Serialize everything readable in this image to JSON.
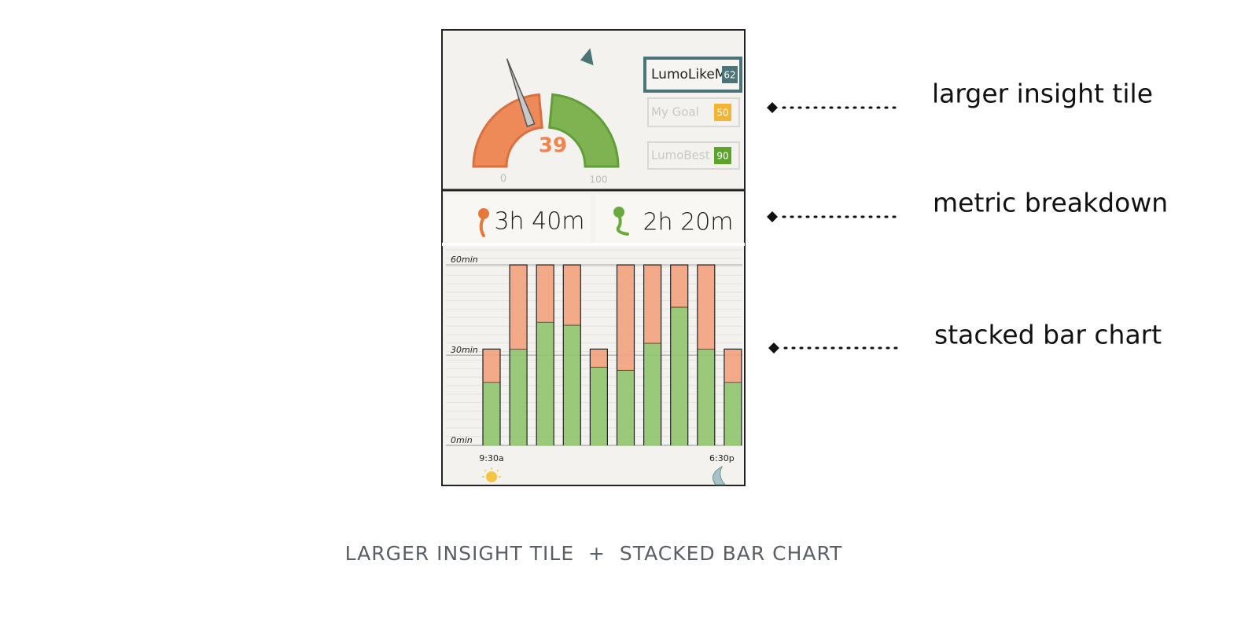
{
  "tile": {
    "gauge": {
      "value": 39,
      "min": 0,
      "max": 100,
      "colors": [
        "#ee8450",
        "#79b04a"
      ],
      "needle_color": "#c9c9c9"
    },
    "benchmarks": [
      {
        "label": "LumoLikeMe",
        "value": 62,
        "color": "#4b7477"
      },
      {
        "label": "My Goal",
        "value": 50,
        "color": "#f2b431"
      },
      {
        "label": "LumoBest",
        "value": 90,
        "color": "#5ea42c"
      }
    ]
  },
  "metrics": [
    {
      "text": "3h 40m",
      "color": "#e8773a"
    },
    {
      "text": "2h 20m",
      "color": "#6aa93c"
    }
  ],
  "chart_data": {
    "type": "stacked_bar",
    "categories": [
      "9:30a",
      null,
      null,
      null,
      null,
      null,
      null,
      null,
      null,
      "6:30p"
    ],
    "series": [
      {
        "color": "#8fc46c",
        "values": [
          21,
          32,
          41,
          40,
          26,
          25,
          34,
          46,
          32,
          21
        ]
      },
      {
        "color": "#f3a27c",
        "values": [
          11,
          28,
          19,
          20,
          6,
          35,
          26,
          14,
          28,
          11
        ]
      }
    ],
    "ylim": [
      0,
      65
    ],
    "yticks": [
      {
        "value": 0,
        "label": "0min"
      },
      {
        "value": 30,
        "label": "30min"
      },
      {
        "value": 60,
        "label": "60min"
      }
    ]
  },
  "annotations": [
    "larger insight tile",
    "metric breakdown",
    "stacked bar chart"
  ],
  "caption": "LARGER INSIGHT TILE  +  STACKED BAR CHART"
}
